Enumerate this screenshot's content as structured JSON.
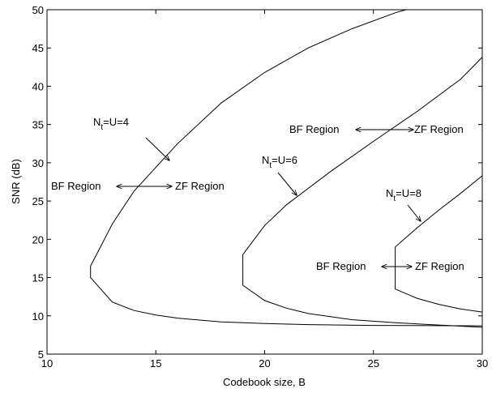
{
  "chart_data": {
    "type": "line",
    "xlabel": "Codebook size, B",
    "ylabel": "SNR (dB)",
    "xlim": [
      10,
      30
    ],
    "ylim": [
      5,
      50
    ],
    "xticks": [
      10,
      15,
      20,
      25,
      30
    ],
    "yticks": [
      5,
      10,
      15,
      20,
      25,
      30,
      35,
      40,
      45,
      50
    ],
    "grid": false,
    "legend": "none",
    "series": [
      {
        "label_main": "N",
        "label_sub": "t",
        "label_rest": "=U=4",
        "upper": [
          [
            12,
            16.5
          ],
          [
            13,
            22
          ],
          [
            14,
            26.3
          ],
          [
            16,
            32.5
          ],
          [
            18,
            37.8
          ],
          [
            20,
            41.8
          ],
          [
            22,
            45
          ],
          [
            24,
            47.5
          ],
          [
            26,
            49.6
          ],
          [
            26.5,
            50
          ]
        ],
        "lower": [
          [
            12,
            15
          ],
          [
            13,
            11.8
          ],
          [
            14,
            10.7
          ],
          [
            15,
            10.1
          ],
          [
            16,
            9.7
          ],
          [
            18,
            9.2
          ],
          [
            20,
            9.0
          ],
          [
            22,
            8.85
          ],
          [
            25,
            8.75
          ],
          [
            30,
            8.7
          ]
        ]
      },
      {
        "label_main": "N",
        "label_sub": "t",
        "label_rest": "=U=6",
        "upper": [
          [
            19,
            18
          ],
          [
            20,
            21.8
          ],
          [
            21,
            24.5
          ],
          [
            23,
            28.8
          ],
          [
            25,
            32.8
          ],
          [
            27,
            36.7
          ],
          [
            29,
            40.9
          ],
          [
            30,
            43.8
          ]
        ],
        "lower": [
          [
            19,
            14
          ],
          [
            20,
            12
          ],
          [
            21,
            11
          ],
          [
            22,
            10.3
          ],
          [
            24,
            9.5
          ],
          [
            26,
            9.1
          ],
          [
            28,
            8.8
          ],
          [
            30,
            8.5
          ]
        ]
      },
      {
        "label_main": "N",
        "label_sub": "t",
        "label_rest": "=U=8",
        "upper": [
          [
            26,
            19
          ],
          [
            27,
            21.5
          ],
          [
            28,
            23.8
          ],
          [
            29,
            26
          ],
          [
            30,
            28.3
          ]
        ],
        "lower": [
          [
            26,
            13.5
          ],
          [
            27,
            12.3
          ],
          [
            28,
            11.5
          ],
          [
            29,
            10.9
          ],
          [
            30,
            10.5
          ]
        ]
      }
    ],
    "annotations": [
      {
        "left": "BF Region",
        "right": "ZF Region"
      },
      {
        "left": "BF Region",
        "right": "ZF Region"
      },
      {
        "left": "BF Region",
        "right": "ZF Region"
      }
    ]
  }
}
